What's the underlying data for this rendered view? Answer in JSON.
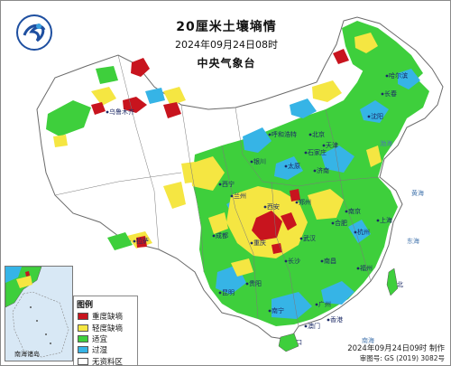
{
  "header": {
    "title": "20厘米土壤墒情",
    "datetime": "2024年09月24日08时",
    "agency": "中央气象台"
  },
  "legend": {
    "title": "图例",
    "items": [
      {
        "label": "重度缺墒",
        "color": "#c8141e"
      },
      {
        "label": "轻度缺墒",
        "color": "#f5e642"
      },
      {
        "label": "适宜",
        "color": "#3ecf3c"
      },
      {
        "label": "过湿",
        "color": "#36b4e6"
      },
      {
        "label": "无资料区",
        "color": "#ffffff"
      }
    ]
  },
  "inset": {
    "label": "南海诸岛"
  },
  "footer": {
    "made": "2024年09月24日09时 制作",
    "approval": "审图号: GS (2019) 3082号"
  },
  "map_labels": {
    "seas": [
      "渤海",
      "黄海",
      "东海",
      "南海"
    ],
    "cities": [
      "北京",
      "天津",
      "上海",
      "台北",
      "广州",
      "香港",
      "澳门",
      "海口",
      "南宁",
      "拉萨",
      "西宁",
      "兰州",
      "银川",
      "呼和浩特",
      "沈阳",
      "长春",
      "哈尔滨",
      "济南",
      "郑州",
      "武汉",
      "长沙",
      "南京",
      "杭州",
      "合肥",
      "福州",
      "南昌",
      "成都",
      "重庆",
      "贵阳",
      "昆明",
      "西安",
      "太原",
      "石家庄",
      "乌鲁木齐"
    ]
  },
  "colors": {
    "severe": "#c8141e",
    "mild": "#f5e642",
    "suitable": "#3ecf3c",
    "wet": "#36b4e6",
    "nodata": "#ffffff",
    "sea": "#d8e8f5",
    "border": "#555555"
  }
}
